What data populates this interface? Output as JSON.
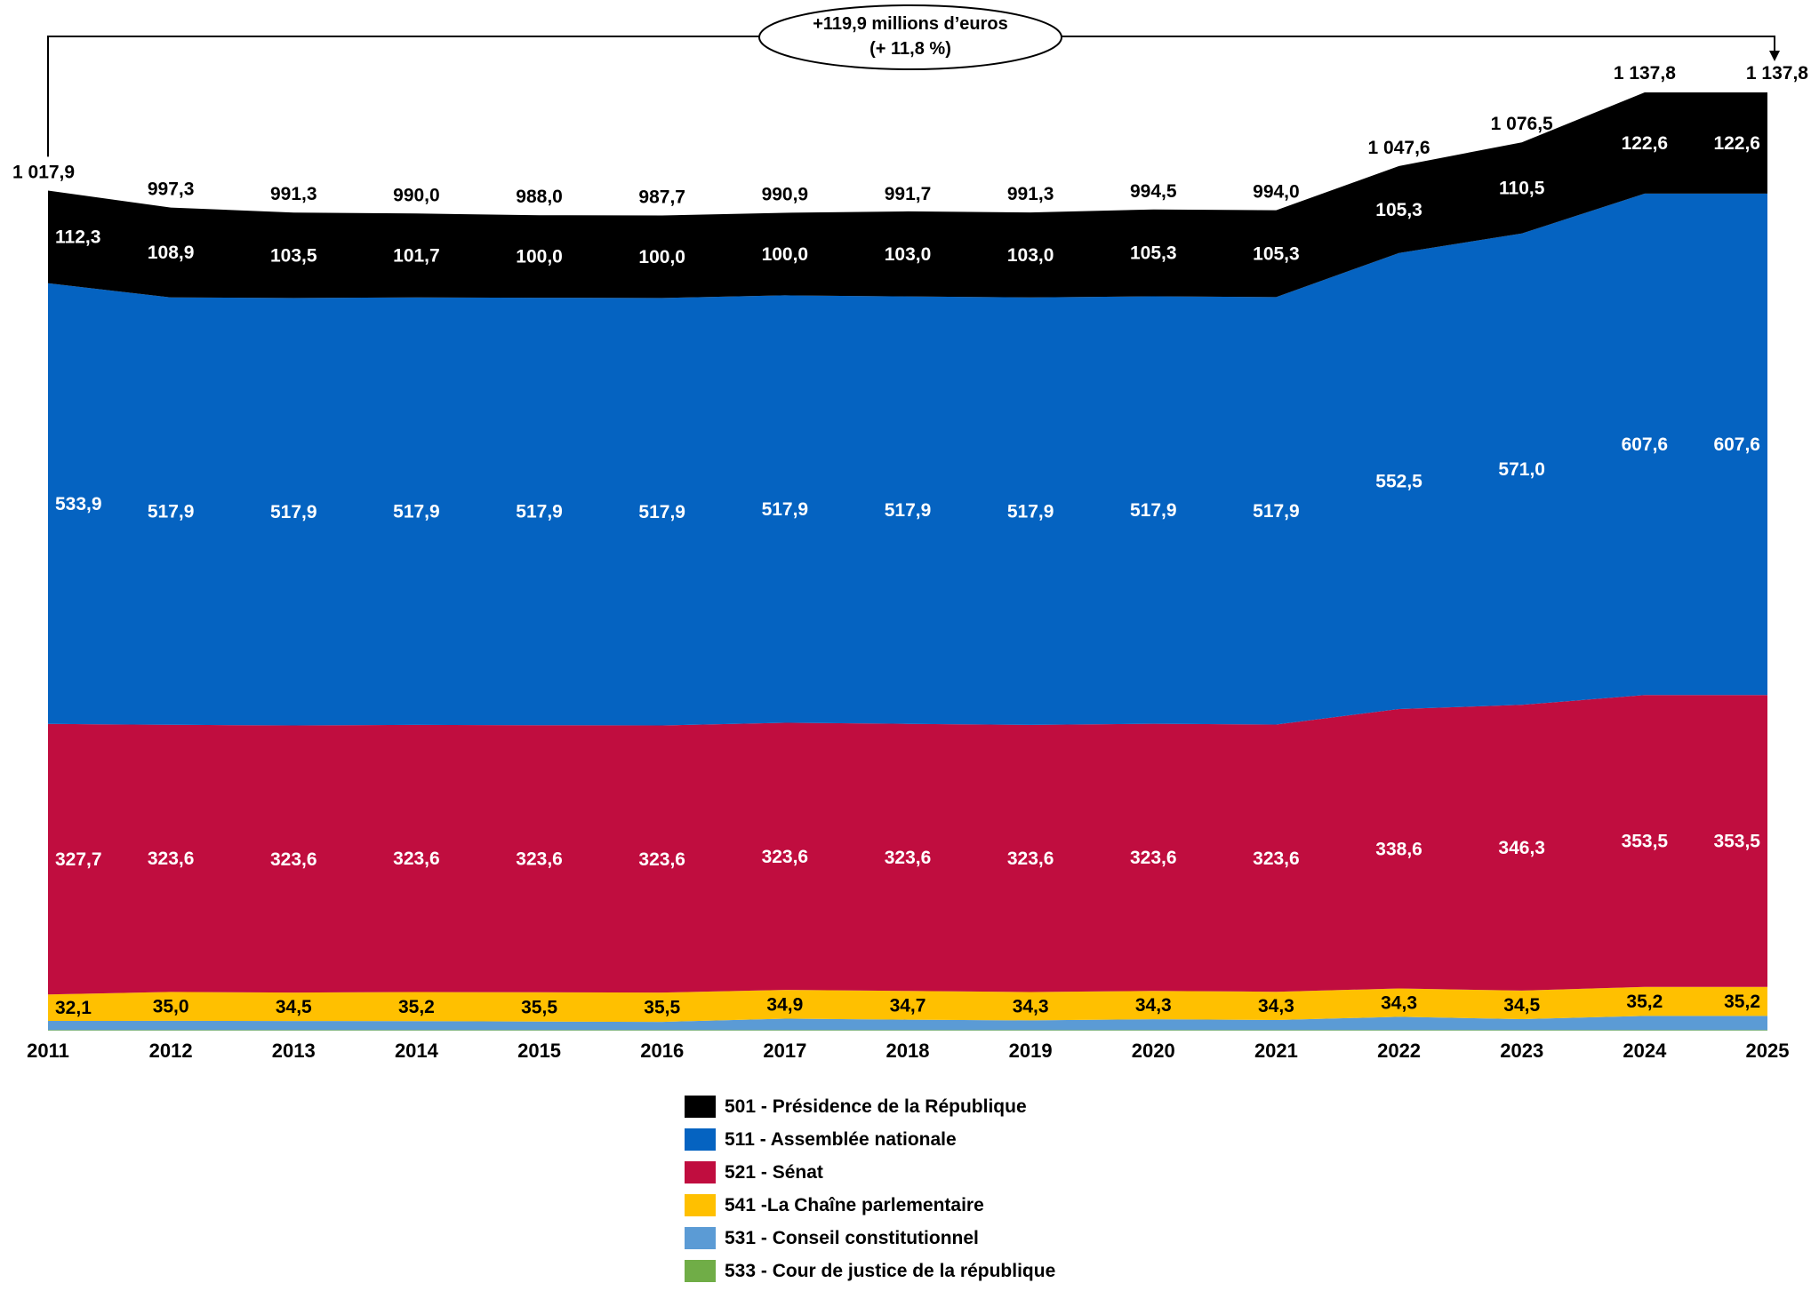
{
  "chart_data": {
    "type": "area",
    "stacked": true,
    "categories": [
      "2011",
      "2012",
      "2013",
      "2014",
      "2015",
      "2016",
      "2017",
      "2018",
      "2019",
      "2020",
      "2021",
      "2022",
      "2023",
      "2024",
      "2025"
    ],
    "series": [
      {
        "name": "533 - Cour de justice de la république",
        "color": "#70ad47",
        "values": [
          0.9,
          0.9,
          0.9,
          0.9,
          0.9,
          0.9,
          0.9,
          0.9,
          0.9,
          0.9,
          0.9,
          0.9,
          0.9,
          0.9,
          0.9
        ],
        "labels": []
      },
      {
        "name": "531 - Conseil constitutionnel",
        "color": "#5b9bd5",
        "values": [
          10.9,
          11.0,
          10.8,
          10.7,
          10.1,
          9.8,
          13.6,
          12.5,
          11.6,
          13.0,
          12.0,
          15.9,
          13.1,
          17.0,
          17.0
        ],
        "labels": []
      },
      {
        "name": "541 -La Chaîne parlementaire",
        "color": "#ffc000",
        "values": [
          32.1,
          35.0,
          34.5,
          35.2,
          35.5,
          35.5,
          34.9,
          34.7,
          34.3,
          34.3,
          34.3,
          34.3,
          34.5,
          35.2,
          35.2
        ],
        "labels": [
          "32,1",
          "35,0",
          "34,5",
          "35,2",
          "35,5",
          "35,5",
          "34,9",
          "34,7",
          "34,3",
          "34,3",
          "34,3",
          "34,3",
          "34,5",
          "35,2",
          "35,2"
        ]
      },
      {
        "name": "521 - Sénat",
        "color": "#c00d3f",
        "values": [
          327.7,
          323.6,
          323.6,
          323.6,
          323.6,
          323.6,
          323.6,
          323.6,
          323.6,
          323.6,
          323.6,
          338.6,
          346.3,
          353.5,
          353.5
        ],
        "labels": [
          "327,7",
          "323,6",
          "323,6",
          "323,6",
          "323,6",
          "323,6",
          "323,6",
          "323,6",
          "323,6",
          "323,6",
          "323,6",
          "338,6",
          "346,3",
          "353,5",
          "353,5"
        ]
      },
      {
        "name": "511 - Assemblée nationale",
        "color": "#0563c1",
        "values": [
          533.9,
          517.9,
          517.9,
          517.9,
          517.9,
          517.9,
          517.9,
          517.9,
          517.9,
          517.9,
          517.9,
          552.5,
          571.0,
          607.6,
          607.6
        ],
        "labels": [
          "533,9",
          "517,9",
          "517,9",
          "517,9",
          "517,9",
          "517,9",
          "517,9",
          "517,9",
          "517,9",
          "517,9",
          "517,9",
          "552,5",
          "571,0",
          "607,6",
          "607,6"
        ]
      },
      {
        "name": "501 - Présidence de la République",
        "color": "#000000",
        "values": [
          112.3,
          108.9,
          103.5,
          101.7,
          100.0,
          100.0,
          100.0,
          103.0,
          103.0,
          105.3,
          105.3,
          105.3,
          110.5,
          122.6,
          122.6
        ],
        "labels": [
          "112,3",
          "108,9",
          "103,5",
          "101,7",
          "100,0",
          "100,0",
          "100,0",
          "103,0",
          "103,0",
          "105,3",
          "105,3",
          "105,3",
          "110,5",
          "122,6",
          "122,6"
        ]
      }
    ],
    "totals": [
      1017.9,
      997.3,
      991.3,
      990.0,
      988.0,
      987.7,
      990.9,
      991.7,
      991.3,
      994.5,
      994.0,
      1047.6,
      1076.5,
      1137.8,
      1137.8
    ],
    "total_labels": [
      "1 017,9",
      "997,3",
      "991,3",
      "990,0",
      "988,0",
      "987,7",
      "990,9",
      "991,7",
      "991,3",
      "994,5",
      "994,0",
      "1 047,6",
      "1 076,5",
      "1 137,8",
      "1 137,8"
    ],
    "ylim": [
      0,
      1140
    ],
    "legend_order": [
      "501 - Présidence de la République",
      "511 - Assemblée nationale",
      "521 - Sénat",
      "541 -La Chaîne parlementaire",
      "531 - Conseil constitutionnel",
      "533 - Cour de justice de la république"
    ],
    "legend_placement": "bottom-center",
    "annotation": {
      "line1": "+119,9 millions d’euros",
      "line2": "(+ 11,8 %)"
    }
  }
}
